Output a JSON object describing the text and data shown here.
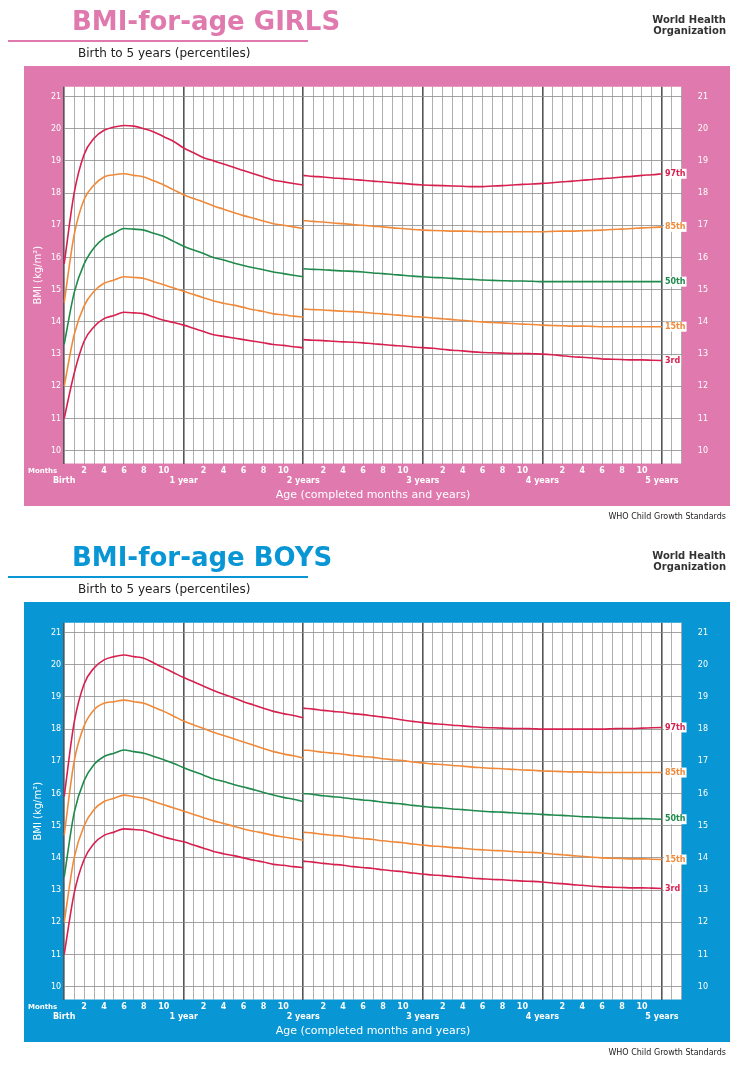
{
  "chart_data": [
    {
      "type": "line",
      "title": "BMI-for-age GIRLS",
      "subtitle": "Birth to 5 years (percentiles)",
      "xlabel": "Age (completed months and years)",
      "ylabel": "BMI (kg/m²)",
      "annotations": [
        "Months",
        "WHO Child Growth Standards",
        "World Health Organization"
      ],
      "ylim": [
        9.6,
        21.3
      ],
      "y2lim": [
        9.6,
        21.3
      ],
      "yticks": [
        10,
        11,
        12,
        13,
        14,
        15,
        16,
        17,
        18,
        19,
        20,
        21
      ],
      "y2ticks": [
        10,
        11,
        12,
        13,
        14,
        15,
        16,
        17,
        18,
        19,
        20,
        21
      ],
      "categories": [
        "Birth",
        null,
        "2",
        null,
        "4",
        null,
        "6",
        null,
        "8",
        null,
        "10",
        null,
        "1 year",
        null,
        "2",
        null,
        "4",
        null,
        "6",
        null,
        "8",
        null,
        "10",
        null,
        "2 years",
        null,
        "2",
        null,
        "4",
        null,
        "6",
        null,
        "8",
        null,
        "10",
        null,
        "3 years",
        null,
        "2",
        null,
        "4",
        null,
        "6",
        null,
        "8",
        null,
        "10",
        null,
        "4 years",
        null,
        "2",
        null,
        "4",
        null,
        "6",
        null,
        "8",
        null,
        "10",
        null,
        "5 years",
        null,
        null
      ],
      "grid": true,
      "legend": false,
      "marker": "none",
      "line_style": "solid",
      "series": [
        {
          "color": "#d8204f",
          "values": [
            15.8,
            18.0,
            19.2,
            19.7,
            19.95,
            20.05,
            20.1,
            20.08,
            20.0,
            19.9,
            19.75,
            19.6,
            19.4,
            19.25,
            19.1,
            19.0,
            18.9,
            18.8,
            18.7,
            18.6,
            18.5,
            18.4,
            18.35,
            18.3,
            18.25,
            null,
            null,
            null,
            null,
            null,
            null,
            null,
            null,
            null,
            null,
            null,
            null,
            null,
            null,
            null,
            null,
            null,
            null,
            null,
            null,
            null,
            null,
            null,
            null,
            null,
            null,
            null,
            null,
            null,
            null,
            null,
            null,
            null,
            null,
            null,
            null,
            null,
            null
          ]
        },
        {
          "name": "97th",
          "color": "#d8204f",
          "values": [
            null,
            null,
            null,
            null,
            null,
            null,
            null,
            null,
            null,
            null,
            null,
            null,
            null,
            null,
            null,
            null,
            null,
            null,
            null,
            null,
            null,
            null,
            null,
            null,
            18.55,
            18.52,
            18.5,
            18.47,
            18.45,
            18.42,
            18.4,
            18.37,
            18.35,
            18.32,
            18.3,
            18.27,
            18.25,
            18.24,
            18.23,
            18.22,
            18.21,
            18.2,
            18.2,
            18.22,
            18.23,
            18.25,
            18.27,
            18.28,
            18.3,
            18.32,
            18.35,
            18.37,
            18.4,
            18.42,
            18.45,
            18.47,
            18.5,
            18.52,
            18.55,
            18.57,
            18.6,
            null,
            null
          ]
        },
        {
          "color": "#f08a3a",
          "values": [
            14.6,
            16.7,
            17.8,
            18.25,
            18.5,
            18.57,
            18.6,
            18.55,
            18.5,
            18.38,
            18.25,
            18.1,
            17.95,
            17.83,
            17.72,
            17.6,
            17.5,
            17.4,
            17.3,
            17.22,
            17.13,
            17.05,
            17.0,
            16.95,
            16.9,
            null,
            null,
            null,
            null,
            null,
            null,
            null,
            null,
            null,
            null,
            null,
            null,
            null,
            null,
            null,
            null,
            null,
            null,
            null,
            null,
            null,
            null,
            null,
            null,
            null,
            null,
            null,
            null,
            null,
            null,
            null,
            null,
            null,
            null,
            null,
            null,
            null,
            null
          ]
        },
        {
          "name": "85th",
          "color": "#f08a3a",
          "values": [
            null,
            null,
            null,
            null,
            null,
            null,
            null,
            null,
            null,
            null,
            null,
            null,
            null,
            null,
            null,
            null,
            null,
            null,
            null,
            null,
            null,
            null,
            null,
            null,
            17.15,
            17.12,
            17.1,
            17.07,
            17.05,
            17.02,
            17.0,
            16.97,
            16.95,
            16.92,
            16.9,
            16.87,
            16.85,
            16.84,
            16.83,
            16.82,
            16.82,
            16.81,
            16.8,
            16.8,
            16.8,
            16.8,
            16.8,
            16.8,
            16.8,
            16.81,
            16.82,
            16.82,
            16.83,
            16.84,
            16.85,
            16.87,
            16.88,
            16.9,
            16.92,
            16.93,
            16.95,
            null,
            null
          ]
        },
        {
          "color": "#1f8a4c",
          "values": [
            13.3,
            14.9,
            15.8,
            16.3,
            16.6,
            16.75,
            16.9,
            16.88,
            16.85,
            16.75,
            16.65,
            16.5,
            16.35,
            16.23,
            16.12,
            16.0,
            15.92,
            15.83,
            15.75,
            15.68,
            15.62,
            15.55,
            15.5,
            15.45,
            15.4,
            null,
            null,
            null,
            null,
            null,
            null,
            null,
            null,
            null,
            null,
            null,
            null,
            null,
            null,
            null,
            null,
            null,
            null,
            null,
            null,
            null,
            null,
            null,
            null,
            null,
            null,
            null,
            null,
            null,
            null,
            null,
            null,
            null,
            null,
            null,
            null,
            null,
            null
          ]
        },
        {
          "name": "50th",
          "color": "#1f8a4c",
          "values": [
            null,
            null,
            null,
            null,
            null,
            null,
            null,
            null,
            null,
            null,
            null,
            null,
            null,
            null,
            null,
            null,
            null,
            null,
            null,
            null,
            null,
            null,
            null,
            null,
            15.65,
            15.63,
            15.62,
            15.6,
            15.58,
            15.57,
            15.55,
            15.52,
            15.5,
            15.47,
            15.45,
            15.42,
            15.4,
            15.38,
            15.37,
            15.35,
            15.33,
            15.32,
            15.3,
            15.29,
            15.28,
            15.27,
            15.27,
            15.26,
            15.25,
            15.25,
            15.25,
            15.25,
            15.25,
            15.25,
            15.25,
            15.25,
            15.25,
            15.25,
            15.25,
            15.25,
            15.25,
            null,
            null
          ]
        },
        {
          "color": "#f08a3a",
          "values": [
            12.0,
            13.6,
            14.5,
            14.95,
            15.2,
            15.3,
            15.4,
            15.38,
            15.35,
            15.25,
            15.15,
            15.05,
            14.95,
            14.85,
            14.75,
            14.65,
            14.58,
            14.52,
            14.45,
            14.38,
            14.32,
            14.25,
            14.22,
            14.18,
            14.15,
            null,
            null,
            null,
            null,
            null,
            null,
            null,
            null,
            null,
            null,
            null,
            null,
            null,
            null,
            null,
            null,
            null,
            null,
            null,
            null,
            null,
            null,
            null,
            null,
            null,
            null,
            null,
            null,
            null,
            null,
            null,
            null,
            null,
            null,
            null,
            null,
            null,
            null
          ]
        },
        {
          "name": "15th",
          "color": "#f08a3a",
          "values": [
            null,
            null,
            null,
            null,
            null,
            null,
            null,
            null,
            null,
            null,
            null,
            null,
            null,
            null,
            null,
            null,
            null,
            null,
            null,
            null,
            null,
            null,
            null,
            null,
            14.4,
            14.38,
            14.37,
            14.35,
            14.33,
            14.32,
            14.3,
            14.27,
            14.25,
            14.22,
            14.2,
            14.17,
            14.15,
            14.12,
            14.1,
            14.07,
            14.05,
            14.02,
            14.0,
            13.98,
            13.97,
            13.95,
            13.93,
            13.92,
            13.9,
            13.89,
            13.88,
            13.87,
            13.87,
            13.86,
            13.85,
            13.85,
            13.85,
            13.85,
            13.85,
            13.85,
            13.85,
            null,
            null
          ]
        },
        {
          "color": "#d8204f",
          "values": [
            11.0,
            12.4,
            13.4,
            13.85,
            14.1,
            14.2,
            14.3,
            14.28,
            14.25,
            14.15,
            14.05,
            13.98,
            13.9,
            13.8,
            13.7,
            13.6,
            13.55,
            13.5,
            13.45,
            13.4,
            13.35,
            13.3,
            13.27,
            13.23,
            13.2,
            null,
            null,
            null,
            null,
            null,
            null,
            null,
            null,
            null,
            null,
            null,
            null,
            null,
            null,
            null,
            null,
            null,
            null,
            null,
            null,
            null,
            null,
            null,
            null,
            null,
            null,
            null,
            null,
            null,
            null,
            null,
            null,
            null,
            null,
            null,
            null,
            null,
            null
          ]
        },
        {
          "name": "3rd",
          "color": "#d8204f",
          "values": [
            null,
            null,
            null,
            null,
            null,
            null,
            null,
            null,
            null,
            null,
            null,
            null,
            null,
            null,
            null,
            null,
            null,
            null,
            null,
            null,
            null,
            null,
            null,
            null,
            13.45,
            13.43,
            13.42,
            13.4,
            13.38,
            13.37,
            13.35,
            13.32,
            13.3,
            13.27,
            13.25,
            13.22,
            13.2,
            13.18,
            13.15,
            13.12,
            13.1,
            13.07,
            13.05,
            13.04,
            13.03,
            13.02,
            13.02,
            13.01,
            13.0,
            12.98,
            12.95,
            12.92,
            12.9,
            12.88,
            12.85,
            12.84,
            12.83,
            12.82,
            12.82,
            12.81,
            12.8,
            null,
            null
          ]
        }
      ]
    },
    {
      "type": "line",
      "title": "BMI-for-age BOYS",
      "subtitle": "Birth to 5 years (percentiles)",
      "xlabel": "Age (completed months and years)",
      "ylabel": "BMI (kg/m²)",
      "annotations": [
        "Months",
        "WHO Child Growth Standards",
        "World Health Organization"
      ],
      "ylim": [
        9.6,
        21.3
      ],
      "y2lim": [
        9.6,
        21.3
      ],
      "yticks": [
        10,
        11,
        12,
        13,
        14,
        15,
        16,
        17,
        18,
        19,
        20,
        21
      ],
      "y2ticks": [
        10,
        11,
        12,
        13,
        14,
        15,
        16,
        17,
        18,
        19,
        20,
        21
      ],
      "categories": [
        "Birth",
        null,
        "2",
        null,
        "4",
        null,
        "6",
        null,
        "8",
        null,
        "10",
        null,
        "1 year",
        null,
        "2",
        null,
        "4",
        null,
        "6",
        null,
        "8",
        null,
        "10",
        null,
        "2 years",
        null,
        "2",
        null,
        "4",
        null,
        "6",
        null,
        "8",
        null,
        "10",
        null,
        "3 years",
        null,
        "2",
        null,
        "4",
        null,
        "6",
        null,
        "8",
        null,
        "10",
        null,
        "4 years",
        null,
        "2",
        null,
        "4",
        null,
        "6",
        null,
        "8",
        null,
        "10",
        null,
        "5 years",
        null,
        null
      ],
      "grid": true,
      "legend": false,
      "marker": "none",
      "line_style": "solid",
      "series": [
        {
          "color": "#d8204f",
          "values": [
            15.9,
            18.2,
            19.4,
            19.9,
            20.15,
            20.25,
            20.3,
            20.25,
            20.2,
            20.05,
            19.9,
            19.75,
            19.6,
            19.47,
            19.33,
            19.2,
            19.08,
            18.97,
            18.85,
            18.75,
            18.65,
            18.55,
            18.48,
            18.42,
            18.35,
            null,
            null,
            null,
            null,
            null,
            null,
            null,
            null,
            null,
            null,
            null,
            null,
            null,
            null,
            null,
            null,
            null,
            null,
            null,
            null,
            null,
            null,
            null,
            null,
            null,
            null,
            null,
            null,
            null,
            null,
            null,
            null,
            null,
            null,
            null,
            null,
            null,
            null
          ]
        },
        {
          "name": "97th",
          "color": "#d8204f",
          "values": [
            null,
            null,
            null,
            null,
            null,
            null,
            null,
            null,
            null,
            null,
            null,
            null,
            null,
            null,
            null,
            null,
            null,
            null,
            null,
            null,
            null,
            null,
            null,
            null,
            18.65,
            18.62,
            18.58,
            18.55,
            18.52,
            18.48,
            18.45,
            18.41,
            18.37,
            18.33,
            18.28,
            18.24,
            18.2,
            18.17,
            18.15,
            18.12,
            18.1,
            18.07,
            18.05,
            18.04,
            18.03,
            18.02,
            18.02,
            18.01,
            18.0,
            18.0,
            18.0,
            18.0,
            18.0,
            18.0,
            18.0,
            18.01,
            18.02,
            18.02,
            18.03,
            18.04,
            18.05,
            null,
            null
          ]
        },
        {
          "color": "#f08a3a",
          "values": [
            14.7,
            17.0,
            18.1,
            18.6,
            18.8,
            18.85,
            18.9,
            18.85,
            18.8,
            18.68,
            18.55,
            18.4,
            18.25,
            18.13,
            18.02,
            17.9,
            17.8,
            17.7,
            17.6,
            17.5,
            17.4,
            17.3,
            17.23,
            17.17,
            17.1,
            null,
            null,
            null,
            null,
            null,
            null,
            null,
            null,
            null,
            null,
            null,
            null,
            null,
            null,
            null,
            null,
            null,
            null,
            null,
            null,
            null,
            null,
            null,
            null,
            null,
            null,
            null,
            null,
            null,
            null,
            null,
            null,
            null,
            null,
            null,
            null,
            null,
            null
          ]
        },
        {
          "name": "85th",
          "color": "#f08a3a",
          "values": [
            null,
            null,
            null,
            null,
            null,
            null,
            null,
            null,
            null,
            null,
            null,
            null,
            null,
            null,
            null,
            null,
            null,
            null,
            null,
            null,
            null,
            null,
            null,
            null,
            17.35,
            17.32,
            17.28,
            17.25,
            17.22,
            17.18,
            17.15,
            17.12,
            17.08,
            17.05,
            17.02,
            16.98,
            16.95,
            16.92,
            16.9,
            16.87,
            16.85,
            16.82,
            16.8,
            16.78,
            16.77,
            16.75,
            16.73,
            16.72,
            16.7,
            16.69,
            16.68,
            16.67,
            16.67,
            16.66,
            16.65,
            16.65,
            16.65,
            16.65,
            16.65,
            16.65,
            16.65,
            null,
            null
          ]
        },
        {
          "color": "#1f8a4c",
          "values": [
            13.4,
            15.4,
            16.4,
            16.9,
            17.15,
            17.25,
            17.35,
            17.3,
            17.25,
            17.15,
            17.05,
            16.93,
            16.8,
            16.68,
            16.57,
            16.45,
            16.37,
            16.28,
            16.2,
            16.12,
            16.03,
            15.95,
            15.88,
            15.82,
            15.75,
            null,
            null,
            null,
            null,
            null,
            null,
            null,
            null,
            null,
            null,
            null,
            null,
            null,
            null,
            null,
            null,
            null,
            null,
            null,
            null,
            null,
            null,
            null,
            null,
            null,
            null,
            null,
            null,
            null,
            null,
            null,
            null,
            null,
            null,
            null,
            null,
            null,
            null
          ]
        },
        {
          "name": "50th",
          "color": "#1f8a4c",
          "values": [
            null,
            null,
            null,
            null,
            null,
            null,
            null,
            null,
            null,
            null,
            null,
            null,
            null,
            null,
            null,
            null,
            null,
            null,
            null,
            null,
            null,
            null,
            null,
            null,
            16.0,
            15.97,
            15.93,
            15.9,
            15.87,
            15.83,
            15.8,
            15.77,
            15.73,
            15.7,
            15.67,
            15.63,
            15.6,
            15.57,
            15.55,
            15.52,
            15.5,
            15.47,
            15.45,
            15.43,
            15.42,
            15.4,
            15.38,
            15.37,
            15.35,
            15.33,
            15.32,
            15.3,
            15.28,
            15.27,
            15.25,
            15.24,
            15.23,
            15.22,
            15.22,
            15.21,
            15.2,
            null,
            null
          ]
        },
        {
          "color": "#f08a3a",
          "values": [
            12.0,
            14.0,
            15.0,
            15.5,
            15.75,
            15.85,
            15.95,
            15.9,
            15.85,
            15.75,
            15.65,
            15.55,
            15.45,
            15.35,
            15.25,
            15.15,
            15.07,
            14.98,
            14.9,
            14.83,
            14.77,
            14.7,
            14.65,
            14.6,
            14.55,
            null,
            null,
            null,
            null,
            null,
            null,
            null,
            null,
            null,
            null,
            null,
            null,
            null,
            null,
            null,
            null,
            null,
            null,
            null,
            null,
            null,
            null,
            null,
            null,
            null,
            null,
            null,
            null,
            null,
            null,
            null,
            null,
            null,
            null,
            null,
            null,
            null,
            null
          ]
        },
        {
          "name": "15th",
          "color": "#f08a3a",
          "values": [
            null,
            null,
            null,
            null,
            null,
            null,
            null,
            null,
            null,
            null,
            null,
            null,
            null,
            null,
            null,
            null,
            null,
            null,
            null,
            null,
            null,
            null,
            null,
            null,
            14.8,
            14.77,
            14.73,
            14.7,
            14.67,
            14.63,
            14.6,
            14.57,
            14.53,
            14.5,
            14.47,
            14.43,
            14.4,
            14.37,
            14.35,
            14.32,
            14.3,
            14.27,
            14.25,
            14.23,
            14.22,
            14.2,
            14.18,
            14.17,
            14.15,
            14.12,
            14.1,
            14.07,
            14.05,
            14.02,
            14.0,
            13.99,
            13.98,
            13.97,
            13.97,
            13.96,
            13.95,
            null,
            null
          ]
        },
        {
          "color": "#d8204f",
          "values": [
            11.0,
            12.9,
            13.95,
            14.45,
            14.7,
            14.8,
            14.9,
            14.88,
            14.85,
            14.75,
            14.65,
            14.57,
            14.5,
            14.4,
            14.3,
            14.2,
            14.13,
            14.07,
            14.0,
            13.93,
            13.87,
            13.8,
            13.77,
            13.73,
            13.7,
            null,
            null,
            null,
            null,
            null,
            null,
            null,
            null,
            null,
            null,
            null,
            null,
            null,
            null,
            null,
            null,
            null,
            null,
            null,
            null,
            null,
            null,
            null,
            null,
            null,
            null,
            null,
            null,
            null,
            null,
            null,
            null,
            null,
            null,
            null,
            null,
            null,
            null
          ]
        },
        {
          "name": "3rd",
          "color": "#d8204f",
          "values": [
            null,
            null,
            null,
            null,
            null,
            null,
            null,
            null,
            null,
            null,
            null,
            null,
            null,
            null,
            null,
            null,
            null,
            null,
            null,
            null,
            null,
            null,
            null,
            null,
            13.9,
            13.87,
            13.83,
            13.8,
            13.77,
            13.73,
            13.7,
            13.67,
            13.63,
            13.6,
            13.57,
            13.53,
            13.5,
            13.47,
            13.45,
            13.42,
            13.4,
            13.37,
            13.35,
            13.33,
            13.32,
            13.3,
            13.28,
            13.27,
            13.25,
            13.22,
            13.2,
            13.17,
            13.15,
            13.12,
            13.1,
            13.09,
            13.08,
            13.07,
            13.07,
            13.06,
            13.05,
            null,
            null
          ]
        }
      ]
    }
  ]
}
